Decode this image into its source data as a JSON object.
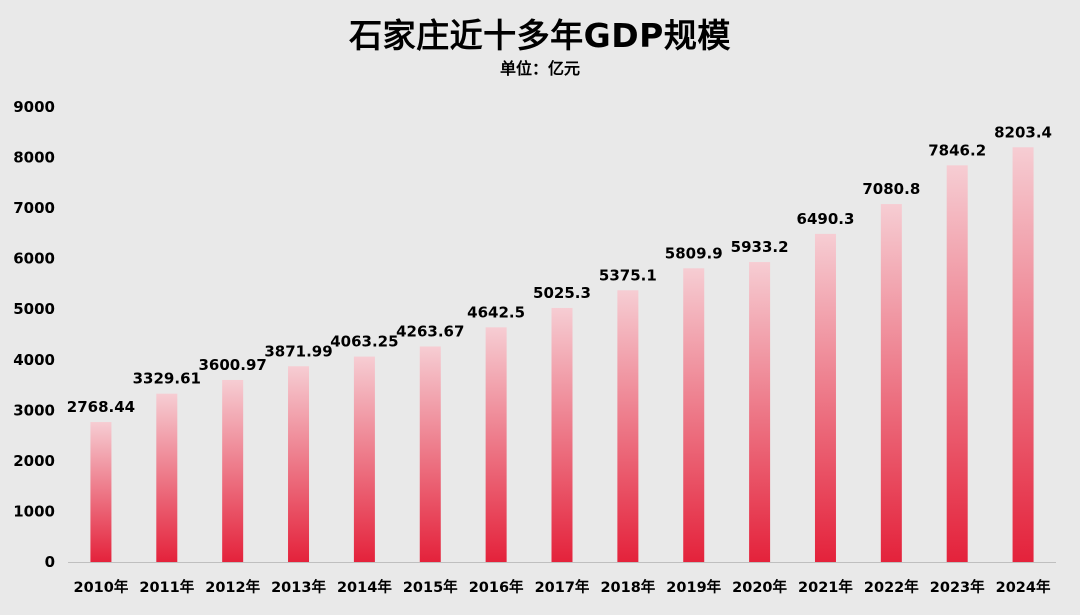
{
  "chart_data": {
    "type": "bar",
    "title": "石家庄近十多年GDP规模",
    "subtitle": "单位：亿元",
    "xlabel": "",
    "ylabel": "",
    "ylim": [
      0,
      9000
    ],
    "yticks": [
      "0",
      "1000",
      "2000",
      "3000",
      "4000",
      "5000",
      "6000",
      "7000",
      "8000",
      "9000"
    ],
    "grid": false,
    "legend": "none",
    "categories": [
      "2010年",
      "2011年",
      "2012年",
      "2013年",
      "2014年",
      "2015年",
      "2016年",
      "2017年",
      "2018年",
      "2019年",
      "2020年",
      "2021年",
      "2022年",
      "2023年",
      "2024年"
    ],
    "values": [
      2768.44,
      3329.61,
      3600.97,
      3871.99,
      4063.25,
      4263.67,
      4642.5,
      5025.3,
      5375.1,
      5809.9,
      5933.2,
      6490.3,
      7080.8,
      7846.2,
      8203.4
    ],
    "value_labels": [
      "2768.44",
      "3329.61",
      "3600.97",
      "3871.99",
      "4063.25",
      "4263.67",
      "4642.5",
      "5025.3",
      "5375.1",
      "5809.9",
      "5933.2",
      "6490.3",
      "7080.8",
      "7846.2",
      "8203.4"
    ],
    "colors": {
      "background": "#e9e9e9",
      "bar_top": "#f6cdd3",
      "bar_bottom": "#e4223b",
      "axis": "#bfbfbf",
      "text": "#000000"
    }
  }
}
